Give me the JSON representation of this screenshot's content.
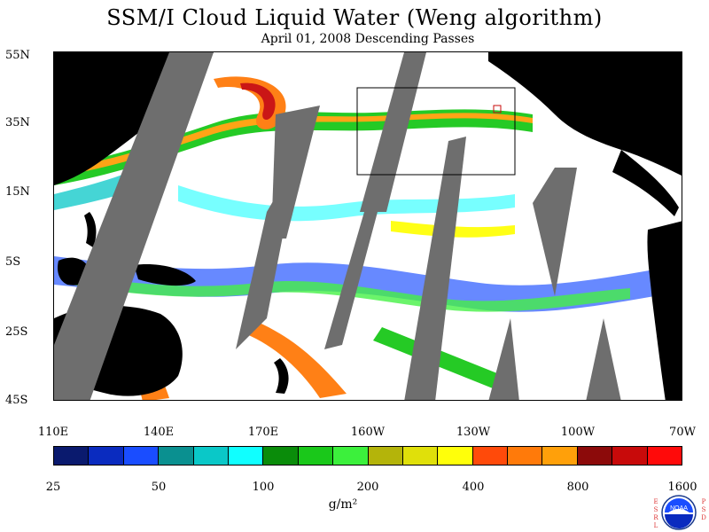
{
  "title": "SSM/I Cloud Liquid Water (Weng algorithm)",
  "subtitle": "April 01, 2008  Descending Passes",
  "lat_labels": [
    "55N",
    "35N",
    "15N",
    "5S",
    "25S",
    "45S"
  ],
  "lon_labels": [
    "110E",
    "140E",
    "170E",
    "160W",
    "130W",
    "100W",
    "70W"
  ],
  "colorbar": {
    "colors": [
      "#0a1a6e",
      "#0a2bbf",
      "#1a4dff",
      "#0a9090",
      "#0ac8c8",
      "#10ffff",
      "#0a8c0a",
      "#1ac81a",
      "#3cf03c",
      "#b4b40a",
      "#e0e00a",
      "#ffff0a",
      "#ff4a0a",
      "#ff7a0a",
      "#ffa00a",
      "#8c0a0a",
      "#c80a0a",
      "#ff0a0a"
    ],
    "tick_labels": [
      "25",
      "50",
      "100",
      "200",
      "400",
      "800",
      "1600"
    ],
    "units": "g/m²"
  },
  "logo": {
    "left_text": "ESRL",
    "right_text": "PSD",
    "center_text": "NOAA"
  },
  "colors": {
    "land": "#000000",
    "missing_swath": "#6e6e6e",
    "ocean_clear": "#ffffff",
    "box_outline": "#000000"
  }
}
